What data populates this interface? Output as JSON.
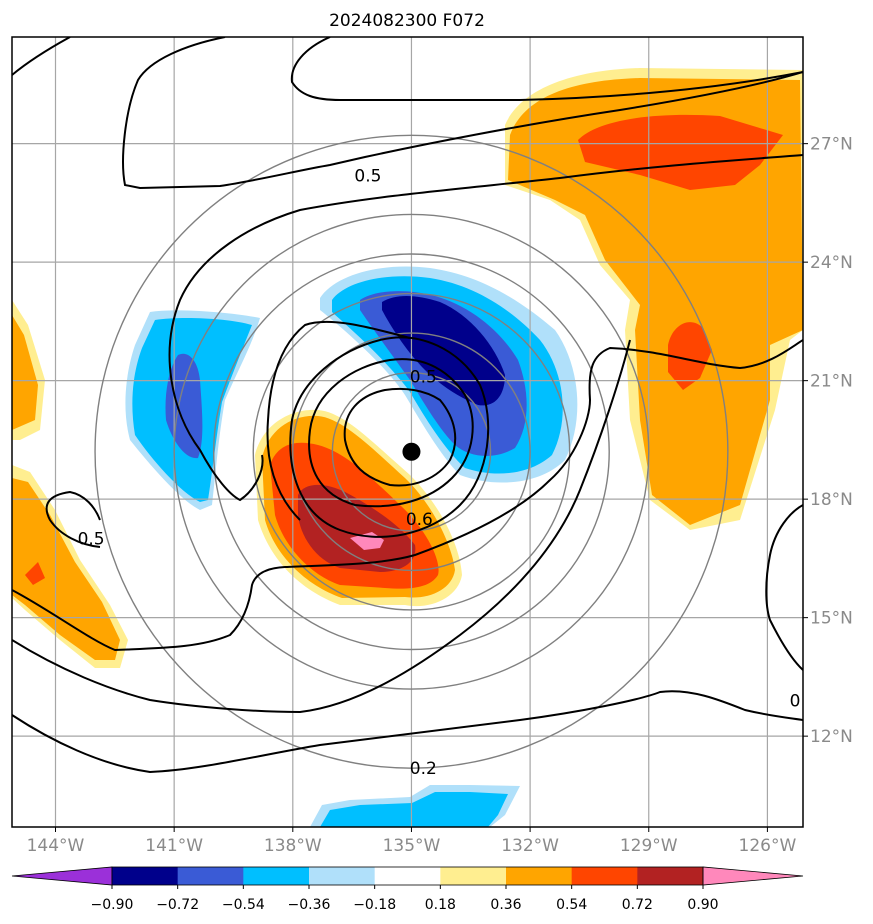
{
  "chart_data": {
    "type": "contour-map",
    "title": "2024082300 F072",
    "x_ticks": [
      "144°W",
      "141°W",
      "138°W",
      "135°W",
      "132°W",
      "129°W",
      "126°W"
    ],
    "y_ticks": [
      "12°N",
      "15°N",
      "18°N",
      "21°N",
      "24°N",
      "27°N"
    ],
    "lon_range": [
      -145.1,
      -125.1
    ],
    "lat_range": [
      9.7,
      29.7
    ],
    "grid": true,
    "storm_center": {
      "lon": -135.0,
      "lat": 19.2
    },
    "range_rings_deg": [
      2,
      3,
      4,
      5,
      6,
      8
    ],
    "colorbar": {
      "ticks": [
        "−0.90",
        "−0.72",
        "−0.54",
        "−0.36",
        "−0.18",
        "0.18",
        "0.36",
        "0.54",
        "0.72",
        "0.90"
      ],
      "colors": [
        "#9b30d9",
        "#00008b",
        "#3a5bd6",
        "#00bfff",
        "#b0e0fa",
        "#ffffff",
        "#ffee90",
        "#ffa500",
        "#ff4500",
        "#b22222",
        "#ff88bb"
      ]
    },
    "contour_labels": [
      {
        "text": "0.5",
        "lon": -136.1,
        "lat": 26.2
      },
      {
        "text": "0.5",
        "lon": -134.7,
        "lat": 21.1
      },
      {
        "text": "0.6",
        "lon": -134.8,
        "lat": 17.5
      },
      {
        "text": "0.5",
        "lon": -143.1,
        "lat": 17.0
      },
      {
        "text": "0.2",
        "lon": -134.7,
        "lat": 11.2
      },
      {
        "text": "0",
        "lon": -125.3,
        "lat": 12.9
      }
    ]
  }
}
